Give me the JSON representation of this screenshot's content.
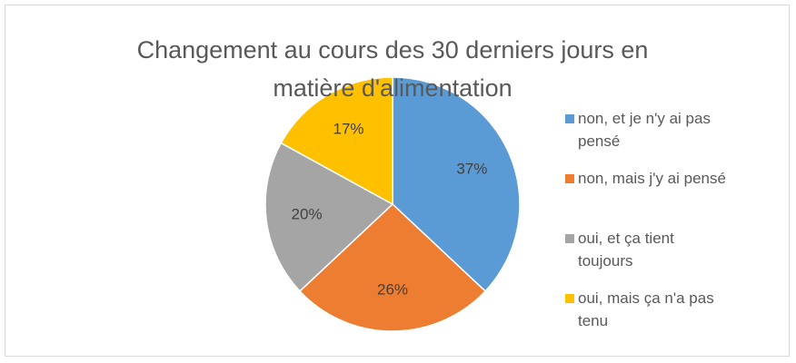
{
  "chart_data": {
    "type": "pie",
    "title": "Changement au cours des 30 derniers jours en matière d'alimentation",
    "categories": [
      "non, et je n'y ai pas pensé",
      "non, mais j'y ai pensé",
      "oui, et ça tient toujours",
      "oui, mais ça n'a pas tenu"
    ],
    "values": [
      37,
      26,
      20,
      17
    ],
    "value_labels": [
      "37%",
      "26%",
      "20%",
      "17%"
    ],
    "colors": [
      "#5b9bd5",
      "#ed7d31",
      "#a5a5a5",
      "#ffc000"
    ],
    "legend": "right"
  }
}
